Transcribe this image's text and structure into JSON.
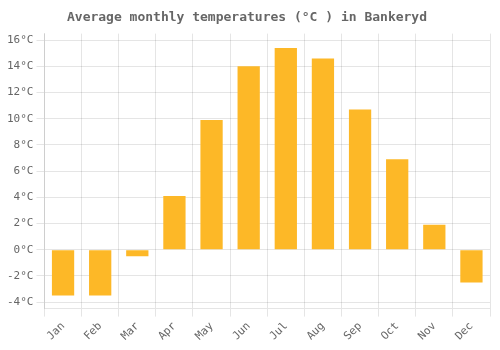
{
  "chart_data": {
    "type": "bar",
    "title": "Average monthly temperatures (°C ) in Bankeryd",
    "categories": [
      "Jan",
      "Feb",
      "Mar",
      "Apr",
      "May",
      "Jun",
      "Jul",
      "Aug",
      "Sep",
      "Oct",
      "Nov",
      "Dec"
    ],
    "values": [
      -3.5,
      -3.5,
      -0.5,
      4.1,
      9.9,
      14.0,
      15.4,
      14.6,
      10.7,
      6.9,
      1.9,
      -2.5
    ],
    "color": "#FDB827",
    "ylim": [
      -4.5,
      16.5
    ],
    "yticks": [
      {
        "value": -4,
        "label": "-4°C"
      },
      {
        "value": -2,
        "label": "-2°C"
      },
      {
        "value": 0,
        "label": "0°C"
      },
      {
        "value": 2,
        "label": "2°C"
      },
      {
        "value": 4,
        "label": "4°C"
      },
      {
        "value": 6,
        "label": "6°C"
      },
      {
        "value": 8,
        "label": "8°C"
      },
      {
        "value": 10,
        "label": "10°C"
      },
      {
        "value": 12,
        "label": "12°C"
      },
      {
        "value": 14,
        "label": "14°C"
      },
      {
        "value": 16,
        "label": "16°C"
      }
    ],
    "grid": true
  }
}
